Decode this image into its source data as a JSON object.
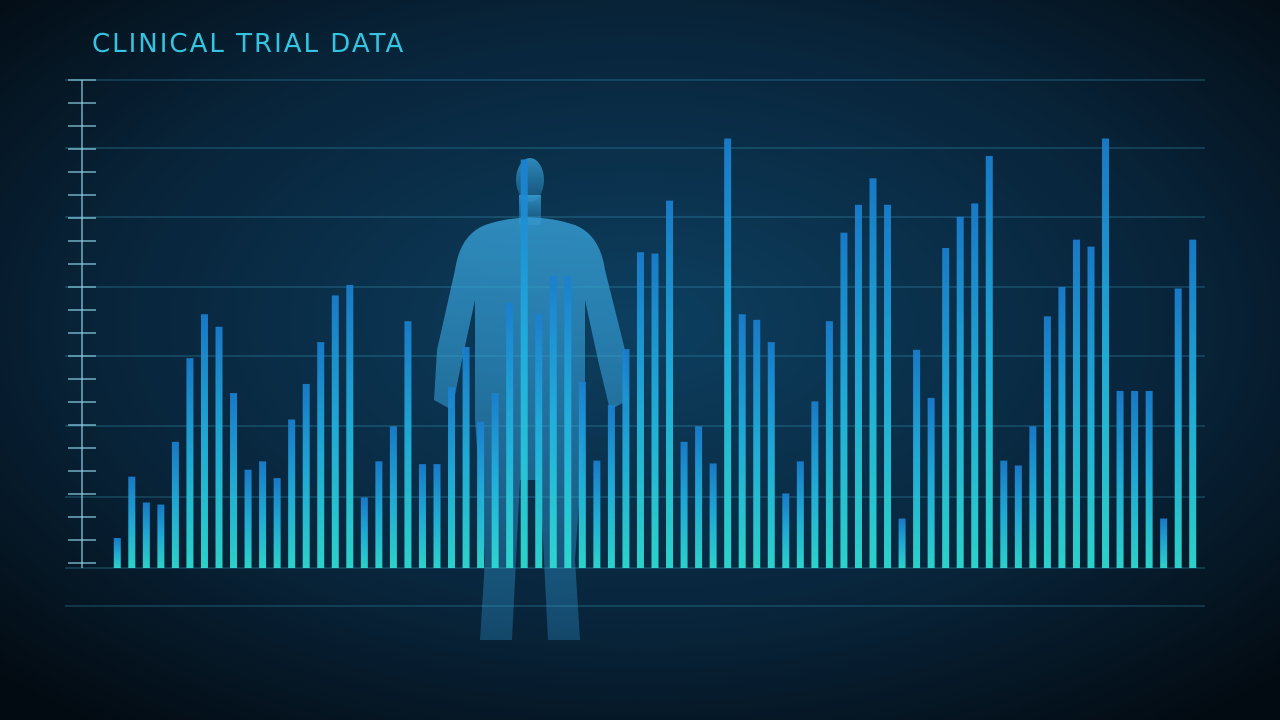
{
  "chart_data": {
    "type": "bar",
    "title": "CLINICAL TRIAL DATA",
    "values": [
      0.43,
      1.31,
      0.94,
      0.91,
      1.81,
      3.01,
      3.64,
      3.46,
      2.51,
      1.41,
      1.53,
      1.29,
      2.13,
      2.64,
      3.24,
      3.91,
      4.06,
      1.01,
      1.53,
      2.03,
      3.54,
      1.49,
      1.49,
      2.6,
      3.17,
      2.1,
      2.51,
      3.8,
      5.86,
      3.64,
      4.19,
      4.19,
      2.67,
      1.54,
      2.34,
      3.14,
      4.53,
      4.51,
      5.27,
      1.81,
      2.03,
      1.5,
      6.16,
      3.64,
      3.56,
      3.24,
      1.07,
      1.53,
      2.39,
      3.54,
      4.81,
      5.21,
      5.59,
      5.21,
      0.71,
      3.13,
      2.44,
      4.59,
      5.04,
      5.23,
      5.91,
      1.54,
      1.47,
      2.03,
      3.61,
      4.03,
      4.71,
      4.61,
      6.16,
      2.54,
      2.54,
      2.54,
      0.71,
      4.01,
      4.71
    ],
    "ylim": [
      0,
      7
    ]
  }
}
